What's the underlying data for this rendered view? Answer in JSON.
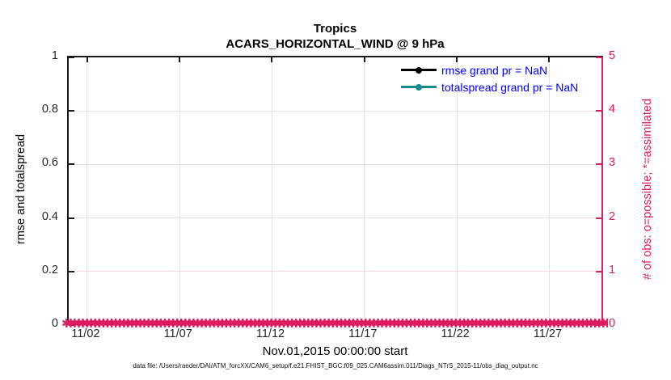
{
  "title": {
    "line1": "Tropics",
    "line2": "ACARS_HORIZONTAL_WIND @ 9 hPa"
  },
  "legend": [
    {
      "label": "rmse grand pr = NaN",
      "color": "#000000",
      "marker": "filled-circle"
    },
    {
      "label": "totalspread grand pr = NaN",
      "color": "#148c8c",
      "marker": "filled-circle"
    }
  ],
  "axes": {
    "left": {
      "label": "rmse and totalspread",
      "ticks": [
        "0",
        "0.2",
        "0.4",
        "0.6",
        "0.8",
        "1"
      ],
      "range": [
        0,
        1
      ]
    },
    "right": {
      "label": "# of obs: o=possible; *=assimilated",
      "ticks": [
        "0",
        "1",
        "2",
        "3",
        "4",
        "5"
      ],
      "range": [
        0,
        5
      ]
    },
    "x": {
      "label": "Nov.01,2015 00:00:00 start",
      "ticks": [
        "11/02",
        "11/07",
        "11/12",
        "11/17",
        "11/22",
        "11/27"
      ]
    }
  },
  "footer": "data file: /Users/raeder/DAI/ATM_forcXX/CAM6_setup/f.e21.FHIST_BGC.f09_025.CAM6assim.011/Diags_NTrS_2015-11/obs_diag_output.nc",
  "colors": {
    "crimson": "#dc1c5e",
    "teal": "#148c8c",
    "legend_text": "#0000ff",
    "grid_horizontal": "#f9d9e2",
    "grid_vertical": "#e4e4e4"
  },
  "chart_data": {
    "type": "line",
    "title": "Tropics",
    "subtitle": "ACARS_HORIZONTAL_WIND @ 9 hPa",
    "xlabel": "Nov.01,2015 00:00:00 start",
    "ylabel_left": "rmse and totalspread",
    "ylabel_right": "# of obs: o=possible; *=assimilated",
    "ylim_left": [
      0,
      1
    ],
    "ylim_right": [
      0,
      5
    ],
    "x_tick_labels": [
      "11/02",
      "11/07",
      "11/12",
      "11/17",
      "11/22",
      "11/27"
    ],
    "x_tick_day_offsets": [
      1,
      6,
      11,
      16,
      21,
      26
    ],
    "x_span_days": 29,
    "grid": true,
    "legend_position": "upper-right-inside",
    "series": [
      {
        "name": "rmse grand pr = NaN",
        "axis": "left",
        "color": "#000000",
        "marker": "filled-circle",
        "values": "all NaN — no curve drawn"
      },
      {
        "name": "totalspread grand pr = NaN",
        "axis": "left",
        "color": "#148c8c",
        "marker": "filled-circle",
        "values": "all NaN — no curve drawn"
      },
      {
        "name": "# of obs possible (o)",
        "axis": "right",
        "color": "#dc1c5e",
        "marker": "o",
        "constant_value": 0,
        "values": "0 at every time step, Nov 1–30 2015"
      },
      {
        "name": "# of obs assimilated (*)",
        "axis": "right",
        "color": "#dc1c5e",
        "marker": "*",
        "constant_value": 0,
        "values": "0 at every time step, Nov 1–30 2015"
      }
    ],
    "marker_glyph": "✱",
    "marker_repeat": 150
  }
}
